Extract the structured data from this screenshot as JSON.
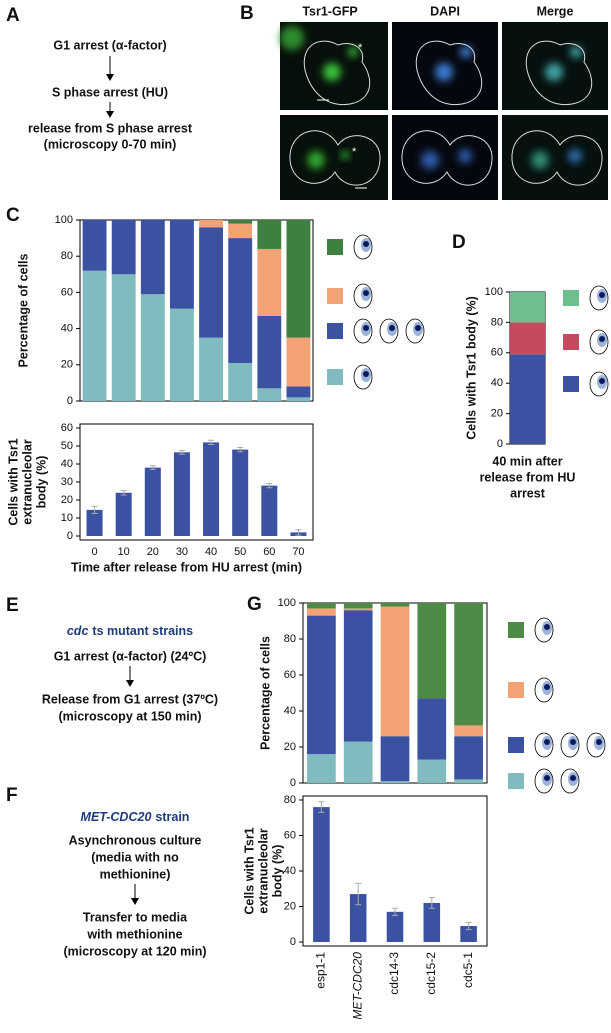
{
  "panel_a": {
    "label": "A",
    "lines": [
      "G1 arrest (α-factor)",
      "S phase arrest (HU)",
      "release from S phase arrest",
      "(microscopy 0-70 min)"
    ]
  },
  "panel_b": {
    "label": "B",
    "headers": [
      "Tsr1-GFP",
      "DAPI",
      "Merge"
    ],
    "asterisks": [
      "*",
      "*"
    ]
  },
  "panel_e": {
    "label": "E",
    "title_italic": "cdc",
    "title_rest": "ts mutant strains",
    "lines": [
      "G1 arrest (α-factor) (24ºC)",
      "Release from G1 arrest (37ºC)",
      "(microscopy at 150 min)"
    ]
  },
  "panel_f": {
    "label": "F",
    "title_italic": "MET-CDC20",
    "title_rest": "strain",
    "lines": [
      "Asynchronous culture",
      "(media with no",
      "methionine)",
      "Transfer to media",
      "with methionine",
      "(microscopy at 120 min)"
    ]
  },
  "panel_labels": {
    "c": "C",
    "d": "D",
    "g": "G"
  },
  "chart_data": [
    {
      "type": "stacked_bar",
      "ylabel": "Percentage of cells",
      "ylim": [
        0,
        100
      ],
      "yticks": [
        0,
        20,
        40,
        60,
        80,
        100
      ],
      "series": [
        {
          "color": "#80bcbf",
          "values": [
            72,
            70,
            59,
            51,
            35,
            21,
            7,
            2
          ]
        },
        {
          "color": "#3b52a3",
          "values": [
            28,
            30,
            41,
            49,
            61,
            69,
            40,
            6
          ]
        },
        {
          "color": "#f2a274",
          "values": [
            0,
            0,
            0,
            0,
            4,
            8,
            37,
            27
          ]
        },
        {
          "color": "#3f7f3f",
          "values": [
            0,
            0,
            0,
            0,
            0,
            2,
            16,
            65
          ]
        }
      ]
    },
    {
      "type": "bar",
      "ylabel_lines": [
        "Cells with Tsr1",
        "extranucleolar",
        "body (%)"
      ],
      "xlabel": "Time after release from HU arrest (min)",
      "categories": [
        "0",
        "10",
        "20",
        "30",
        "40",
        "50",
        "60",
        "70"
      ],
      "values": [
        14.5,
        24,
        38,
        46.5,
        52,
        48,
        28,
        2
      ],
      "errors": [
        2,
        1.2,
        1,
        1,
        1.2,
        1.2,
        1.2,
        1.5
      ],
      "color": "#3b52a3",
      "ylim": [
        0,
        60
      ],
      "yticks": [
        0,
        10,
        20,
        30,
        40,
        50,
        60
      ]
    },
    {
      "type": "stacked_bar",
      "ylabel": "Cells with Tsr1 body (%)",
      "xlabel_lines": [
        "40 min after",
        "release from HU",
        "arrest"
      ],
      "ylim": [
        0,
        100
      ],
      "yticks": [
        0,
        20,
        40,
        60,
        80,
        100
      ],
      "series": [
        {
          "color": "#3b52a3",
          "values": [
            59
          ]
        },
        {
          "color": "#c34a5f",
          "values": [
            21
          ]
        },
        {
          "color": "#6dbf90",
          "values": [
            20
          ]
        }
      ]
    },
    {
      "type": "stacked_bar",
      "ylabel": "Percentage of cells",
      "ylim": [
        0,
        100
      ],
      "yticks": [
        0,
        20,
        40,
        60,
        80,
        100
      ],
      "series": [
        {
          "color": "#80bcbf",
          "values": [
            16,
            23,
            1,
            13,
            2
          ]
        },
        {
          "color": "#3b52a3",
          "values": [
            77,
            73,
            25,
            34,
            24
          ]
        },
        {
          "color": "#f2a274",
          "values": [
            4,
            1,
            72,
            0,
            6
          ]
        },
        {
          "color": "#4c8a46",
          "values": [
            3,
            3,
            2,
            53,
            68
          ]
        }
      ]
    },
    {
      "type": "bar",
      "ylabel_lines": [
        "Cells with Tsr1",
        "extranucleolar",
        "body (%)"
      ],
      "categories": [
        "esp1-1",
        "MET-CDC20",
        "cdc14-3",
        "cdc15-2",
        "cdc5-1"
      ],
      "values": [
        76,
        27,
        17,
        22,
        9
      ],
      "errors": [
        3,
        6,
        2,
        3,
        2
      ],
      "color": "#3b52a3",
      "ylim": [
        0,
        80
      ],
      "yticks": [
        0,
        20,
        40,
        60,
        80
      ]
    }
  ]
}
